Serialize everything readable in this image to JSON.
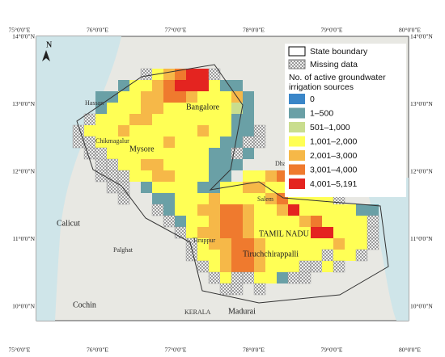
{
  "map": {
    "north": "N",
    "top_coords": [
      "75°0'0\"E",
      "76°0'0\"E",
      "77°0'0\"E",
      "78°0'0\"E",
      "79°0'0\"E",
      "80°0'0\"E"
    ],
    "side_coords": [
      "14°0'0\"N",
      "13°0'0\"N",
      "12°0'0\"N",
      "11°0'0\"N",
      "10°0'0\"N"
    ],
    "cities": [
      "Hassan",
      "Bangalore",
      "Mysore",
      "Calicut",
      "Cochin",
      "Madurai",
      "Tiruchchirappalli",
      "Salem",
      "Tiruppur",
      "Dharmapuri",
      "Chikmagalur",
      "Palghat",
      "KERALA",
      "TAMIL NADU"
    ],
    "legend": {
      "state_boundary": "State boundary",
      "missing_data": "Missing data",
      "title": [
        "No. of active groundwater",
        "irrigation sources"
      ],
      "classes": [
        {
          "label": "0",
          "color": "#3a86c8"
        },
        {
          "label": "1–500",
          "color": "#6aa0a6"
        },
        {
          "label": "501–1,000",
          "color": "#c9dd8e"
        },
        {
          "label": "1,001–2,000",
          "color": "#ffff55"
        },
        {
          "label": "2,001–3,000",
          "color": "#f6b848"
        },
        {
          "label": "3,001–4,000",
          "color": "#ef7a2e"
        },
        {
          "label": "4,001–5,191",
          "color": "#e42420"
        }
      ]
    },
    "grid": [
      "......x34566x..............",
      "....13345666311............",
      "..11334455433341...........",
      "..13334433333321...........",
      ".x33344333333311...........",
      "x333433333343311x..........",
      "xx3333334333311xx..........",
      ".xx33333333311x1...........",
      "..xx33443333111............",
      "..xxx334433311.3345........",
      "...xx.1333311334433311.....",
      "....x..1133343333453333x...",
      ".......x1334455433463333311",
      "........x13345543333453333x",
      ".........x3445543333366333x",
      "..........x344554333333433x",
      "..........x33455433333x33x.",
      "...........x34554333xx3x...",
      "............x3xx331xx......",
      ".............xx.x.........."
    ]
  }
}
